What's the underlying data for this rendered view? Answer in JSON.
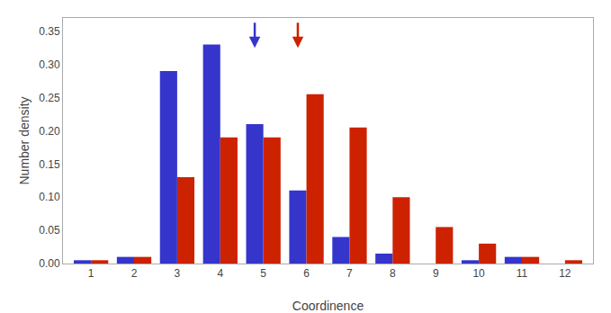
{
  "chart_data": {
    "type": "bar",
    "x": [
      1,
      2,
      3,
      4,
      5,
      6,
      7,
      8,
      9,
      10,
      11,
      12
    ],
    "series": [
      {
        "color": "#3535cc",
        "values": [
          0.005,
          0.01,
          0.29,
          0.33,
          0.21,
          0.11,
          0.04,
          0.015,
          0.0,
          0.005,
          0.01,
          0.0
        ]
      },
      {
        "color": "#cc2200",
        "values": [
          0.005,
          0.01,
          0.13,
          0.19,
          0.19,
          0.255,
          0.205,
          0.1,
          0.055,
          0.03,
          0.01,
          0.005
        ]
      }
    ],
    "xlabel": "Coordinence",
    "ylabel": "Number density",
    "xlim": [
      0.35,
      12.65
    ],
    "xticks": [
      1,
      2,
      3,
      4,
      5,
      6,
      7,
      8,
      9,
      10,
      11,
      12
    ],
    "ylim": [
      0,
      0.37
    ],
    "yticks": [
      {
        "value": 0,
        "label": "0.00"
      },
      0.05,
      {
        "value": 0.1,
        "label": "0.10"
      },
      0.15,
      {
        "value": 0.2,
        "label": "0.20"
      },
      0.25,
      {
        "value": 0.3,
        "label": "0.30"
      },
      0.35
    ],
    "annotations": [
      {
        "x": 4.8,
        "y_start": 0.365,
        "y_end": 0.325,
        "color": "#3535cc"
      },
      {
        "x": 5.8,
        "y_start": 0.365,
        "y_end": 0.325,
        "color": "#cc2200"
      }
    ],
    "grid": false
  }
}
